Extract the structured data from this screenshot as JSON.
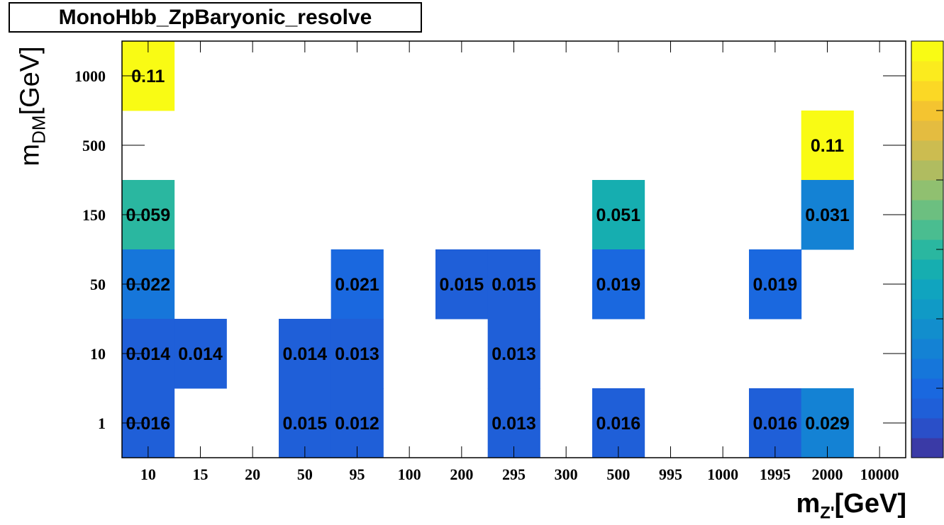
{
  "title": "MonoHbb_ZpBaryonic_resolve",
  "chart_data": {
    "type": "heatmap",
    "title": "MonoHbb_ZpBaryonic_resolve",
    "xlabel": {
      "main": "m",
      "sub": "Z'",
      "unit": "[GeV]"
    },
    "ylabel": {
      "main": "m",
      "sub": "DM",
      "unit": "[GeV]"
    },
    "x_categories": [
      "10",
      "15",
      "20",
      "50",
      "95",
      "100",
      "200",
      "295",
      "300",
      "500",
      "995",
      "1000",
      "1995",
      "2000",
      "10000"
    ],
    "y_categories": [
      "1",
      "10",
      "50",
      "150",
      "500",
      "1000"
    ],
    "cells": [
      {
        "x": "10",
        "y": "1000",
        "value": 0.11,
        "label": "0.11"
      },
      {
        "x": "2000",
        "y": "500",
        "value": 0.11,
        "label": "0.11"
      },
      {
        "x": "10",
        "y": "150",
        "value": 0.059,
        "label": "0.059"
      },
      {
        "x": "500",
        "y": "150",
        "value": 0.051,
        "label": "0.051"
      },
      {
        "x": "2000",
        "y": "150",
        "value": 0.031,
        "label": "0.031"
      },
      {
        "x": "10",
        "y": "50",
        "value": 0.022,
        "label": "0.022"
      },
      {
        "x": "95",
        "y": "50",
        "value": 0.021,
        "label": "0.021"
      },
      {
        "x": "200",
        "y": "50",
        "value": 0.015,
        "label": "0.015"
      },
      {
        "x": "295",
        "y": "50",
        "value": 0.015,
        "label": "0.015"
      },
      {
        "x": "500",
        "y": "50",
        "value": 0.019,
        "label": "0.019"
      },
      {
        "x": "1995",
        "y": "50",
        "value": 0.019,
        "label": "0.019"
      },
      {
        "x": "10",
        "y": "10",
        "value": 0.014,
        "label": "0.014"
      },
      {
        "x": "15",
        "y": "10",
        "value": 0.014,
        "label": "0.014"
      },
      {
        "x": "50",
        "y": "10",
        "value": 0.014,
        "label": "0.014"
      },
      {
        "x": "95",
        "y": "10",
        "value": 0.013,
        "label": "0.013"
      },
      {
        "x": "295",
        "y": "10",
        "value": 0.013,
        "label": "0.013"
      },
      {
        "x": "10",
        "y": "1",
        "value": 0.016,
        "label": "0.016"
      },
      {
        "x": "50",
        "y": "1",
        "value": 0.015,
        "label": "0.015"
      },
      {
        "x": "95",
        "y": "1",
        "value": 0.012,
        "label": "0.012"
      },
      {
        "x": "295",
        "y": "1",
        "value": 0.013,
        "label": "0.013"
      },
      {
        "x": "500",
        "y": "1",
        "value": 0.016,
        "label": "0.016"
      },
      {
        "x": "1995",
        "y": "1",
        "value": 0.016,
        "label": "0.016"
      },
      {
        "x": "2000",
        "y": "1",
        "value": 0.029,
        "label": "0.029"
      }
    ],
    "color_scale": {
      "min": 0.0,
      "max": 0.115,
      "palette": [
        "#3a3aa6",
        "#2a4fc8",
        "#1f5fd8",
        "#1a68df",
        "#1676da",
        "#1482d4",
        "#128ecd",
        "#109ac6",
        "#10a4bf",
        "#16aeb0",
        "#2ab7a0",
        "#4abd90",
        "#6cbf80",
        "#90c070",
        "#b0bc60",
        "#ccbc50",
        "#e4bc40",
        "#f4c430",
        "#fbd825",
        "#fbeb1e",
        "#f9fb14"
      ]
    },
    "grid": false,
    "legend": "colorbar-right"
  }
}
